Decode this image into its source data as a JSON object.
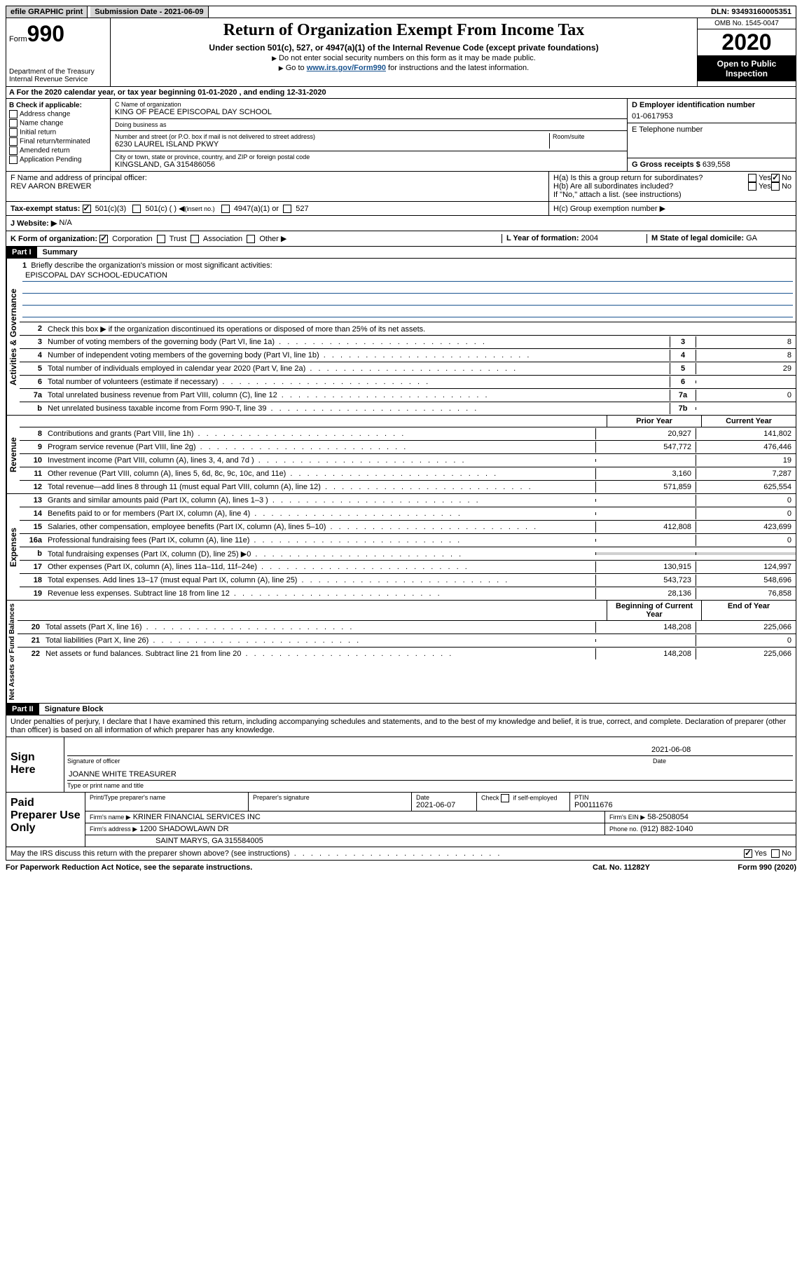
{
  "top": {
    "efile": "efile GRAPHIC print",
    "submission": "Submission Date - 2021-06-09",
    "dln": "DLN: 93493160005351"
  },
  "header": {
    "form_label": "Form",
    "form_number": "990",
    "dept": "Department of the Treasury\nInternal Revenue Service",
    "title": "Return of Organization Exempt From Income Tax",
    "subtitle": "Under section 501(c), 527, or 4947(a)(1) of the Internal Revenue Code (except private foundations)",
    "instr1": "Do not enter social security numbers on this form as it may be made public.",
    "instr2_pre": "Go to ",
    "instr2_link": "www.irs.gov/Form990",
    "instr2_post": " for instructions and the latest information.",
    "omb": "OMB No. 1545-0047",
    "year": "2020",
    "open_public": "Open to Public Inspection"
  },
  "sectionA": "A For the 2020 calendar year, or tax year beginning 01-01-2020   , and ending 12-31-2020",
  "boxB": {
    "header": "B Check if applicable:",
    "items": [
      "Address change",
      "Name change",
      "Initial return",
      "Final return/terminated",
      "Amended return",
      "Application Pending"
    ]
  },
  "boxC": {
    "name_label": "C Name of organization",
    "name": "KING OF PEACE EPISCOPAL DAY SCHOOL",
    "dba_label": "Doing business as",
    "street_label": "Number and street (or P.O. box if mail is not delivered to street address)",
    "room_label": "Room/suite",
    "street": "6230 LAUREL ISLAND PKWY",
    "city_label": "City or town, state or province, country, and ZIP or foreign postal code",
    "city": "KINGSLAND, GA  315486056",
    "officer_label": "F Name and address of principal officer:",
    "officer": "REV AARON BREWER"
  },
  "boxD": {
    "label": "D Employer identification number",
    "value": "01-0617953"
  },
  "boxE": {
    "label": "E Telephone number"
  },
  "boxG": {
    "label": "G Gross receipts $ ",
    "value": "639,558"
  },
  "boxH": {
    "a": "H(a)  Is this a group return for subordinates?",
    "b": "H(b)  Are all subordinates included?",
    "note": "If \"No,\" attach a list. (see instructions)",
    "c": "H(c)  Group exemption number ▶",
    "yes": "Yes",
    "no": "No"
  },
  "taxStatus": {
    "label": "Tax-exempt status:",
    "opt1": "501(c)(3)",
    "opt2": "501(c) ( )",
    "opt2_note": "(insert no.)",
    "opt3": "4947(a)(1) or",
    "opt4": "527"
  },
  "boxJ": {
    "label": "J    Website: ▶",
    "value": "N/A"
  },
  "boxK": {
    "label": "K Form of organization:",
    "opts": [
      "Corporation",
      "Trust",
      "Association",
      "Other ▶"
    ]
  },
  "boxL": {
    "label": "L Year of formation: ",
    "value": "2004"
  },
  "boxM": {
    "label": "M State of legal domicile: ",
    "value": "GA"
  },
  "part1": {
    "header": "Part I",
    "title": "Summary"
  },
  "governance": {
    "label": "Activities & Governance",
    "l1_label": "Briefly describe the organization's mission or most significant activities:",
    "l1_value": "EPISCOPAL DAY SCHOOL-EDUCATION",
    "l2": "Check this box ▶      if the organization discontinued its operations or disposed of more than 25% of its net assets.",
    "l3": "Number of voting members of the governing body (Part VI, line 1a)",
    "l3v": "8",
    "l4": "Number of independent voting members of the governing body (Part VI, line 1b)",
    "l4v": "8",
    "l5": "Total number of individuals employed in calendar year 2020 (Part V, line 2a)",
    "l5v": "29",
    "l6": "Total number of volunteers (estimate if necessary)",
    "l6v": "",
    "l7a": "Total unrelated business revenue from Part VIII, column (C), line 12",
    "l7av": "0",
    "l7b": "Net unrelated business taxable income from Form 990-T, line 39",
    "l7bv": ""
  },
  "colHeaders": {
    "prior": "Prior Year",
    "current": "Current Year",
    "beg": "Beginning of Current Year",
    "end": "End of Year"
  },
  "revenue": {
    "label": "Revenue",
    "rows": [
      {
        "n": "8",
        "t": "Contributions and grants (Part VIII, line 1h)",
        "p": "20,927",
        "c": "141,802"
      },
      {
        "n": "9",
        "t": "Program service revenue (Part VIII, line 2g)",
        "p": "547,772",
        "c": "476,446"
      },
      {
        "n": "10",
        "t": "Investment income (Part VIII, column (A), lines 3, 4, and 7d )",
        "p": "",
        "c": "19"
      },
      {
        "n": "11",
        "t": "Other revenue (Part VIII, column (A), lines 5, 6d, 8c, 9c, 10c, and 11e)",
        "p": "3,160",
        "c": "7,287"
      },
      {
        "n": "12",
        "t": "Total revenue—add lines 8 through 11 (must equal Part VIII, column (A), line 12)",
        "p": "571,859",
        "c": "625,554"
      }
    ]
  },
  "expenses": {
    "label": "Expenses",
    "rows": [
      {
        "n": "13",
        "t": "Grants and similar amounts paid (Part IX, column (A), lines 1–3 )",
        "p": "",
        "c": "0"
      },
      {
        "n": "14",
        "t": "Benefits paid to or for members (Part IX, column (A), line 4)",
        "p": "",
        "c": "0"
      },
      {
        "n": "15",
        "t": "Salaries, other compensation, employee benefits (Part IX, column (A), lines 5–10)",
        "p": "412,808",
        "c": "423,699"
      },
      {
        "n": "16a",
        "t": "Professional fundraising fees (Part IX, column (A), line 11e)",
        "p": "",
        "c": "0"
      },
      {
        "n": "b",
        "t": "Total fundraising expenses (Part IX, column (D), line 25) ▶0",
        "p": "grey",
        "c": "grey"
      },
      {
        "n": "17",
        "t": "Other expenses (Part IX, column (A), lines 11a–11d, 11f–24e)",
        "p": "130,915",
        "c": "124,997"
      },
      {
        "n": "18",
        "t": "Total expenses. Add lines 13–17 (must equal Part IX, column (A), line 25)",
        "p": "543,723",
        "c": "548,696"
      },
      {
        "n": "19",
        "t": "Revenue less expenses. Subtract line 18 from line 12",
        "p": "28,136",
        "c": "76,858"
      }
    ]
  },
  "netassets": {
    "label": "Net Assets or Fund Balances",
    "rows": [
      {
        "n": "20",
        "t": "Total assets (Part X, line 16)",
        "p": "148,208",
        "c": "225,066"
      },
      {
        "n": "21",
        "t": "Total liabilities (Part X, line 26)",
        "p": "",
        "c": "0"
      },
      {
        "n": "22",
        "t": "Net assets or fund balances. Subtract line 21 from line 20",
        "p": "148,208",
        "c": "225,066"
      }
    ]
  },
  "part2": {
    "header": "Part II",
    "title": "Signature Block"
  },
  "perjury": "Under penalties of perjury, I declare that I have examined this return, including accompanying schedules and statements, and to the best of my knowledge and belief, it is true, correct, and complete. Declaration of preparer (other than officer) is based on all information of which preparer has any knowledge.",
  "sign": {
    "label": "Sign Here",
    "sig_label": "Signature of officer",
    "date": "2021-06-08",
    "date_label": "Date",
    "name": "JOANNE WHITE  TREASURER",
    "name_label": "Type or print name and title"
  },
  "preparer": {
    "label": "Paid Preparer Use Only",
    "h1": "Print/Type preparer's name",
    "h2": "Preparer's signature",
    "h3": "Date",
    "h3v": "2021-06-07",
    "h4": "Check       if self-employed",
    "h5": "PTIN",
    "h5v": "P00111676",
    "firm_name_label": "Firm's name    ▶",
    "firm_name": "KRINER FINANCIAL SERVICES INC",
    "firm_ein_label": "Firm's EIN ▶",
    "firm_ein": "58-2508054",
    "firm_addr_label": "Firm's address ▶",
    "firm_addr1": "1200 SHADOWLAWN DR",
    "firm_addr2": "SAINT MARYS, GA  315584005",
    "phone_label": "Phone no.",
    "phone": "(912) 882-1040"
  },
  "discuss": {
    "text": "May the IRS discuss this return with the preparer shown above? (see instructions)",
    "yes": "Yes",
    "no": "No"
  },
  "footer": {
    "left": "For Paperwork Reduction Act Notice, see the separate instructions.",
    "center": "Cat. No. 11282Y",
    "right": "Form 990 (2020)"
  }
}
